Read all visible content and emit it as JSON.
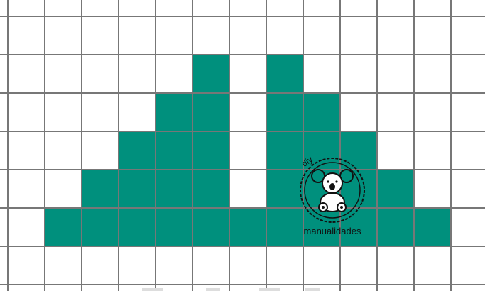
{
  "grid": {
    "columns": 13,
    "rows": 8,
    "fill_color": "#00907d",
    "line_color": "#777777",
    "background_color": "#ffffff",
    "filled_cells_by_row": [
      [],
      [],
      [
        5,
        7
      ],
      [
        4,
        5,
        7,
        8
      ],
      [
        3,
        4,
        5,
        7,
        8,
        9
      ],
      [
        2,
        3,
        4,
        5,
        7,
        8,
        9,
        10
      ],
      [
        1,
        2,
        3,
        4,
        5,
        6,
        7,
        8,
        9,
        10,
        11
      ],
      []
    ]
  },
  "watermark": {
    "brand_top": "diy",
    "brand_bottom": "manualidades",
    "icon": "koala-icon",
    "ink_color": "#111111"
  }
}
